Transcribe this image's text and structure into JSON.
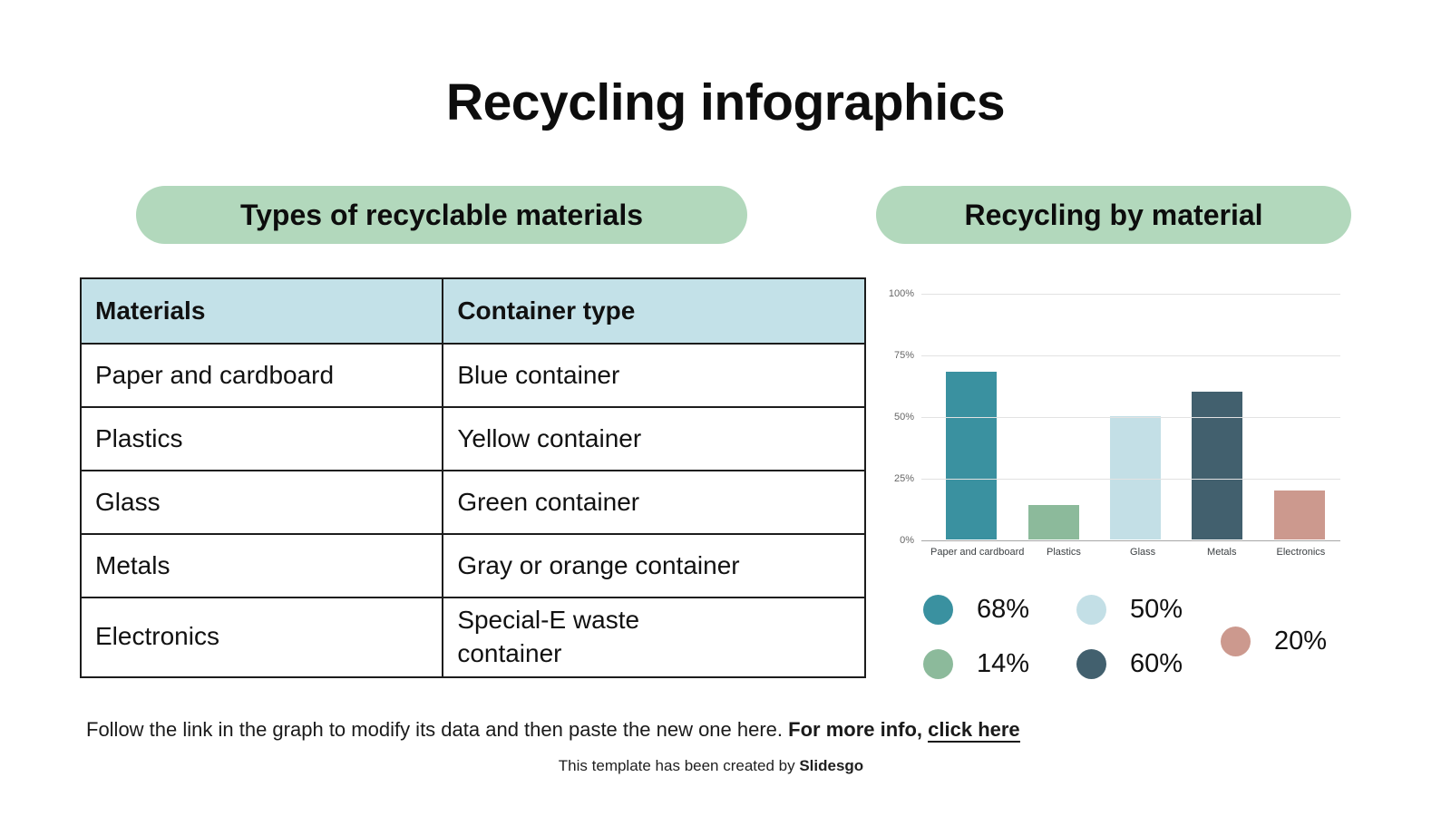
{
  "title": "Recycling infographics",
  "sections": {
    "materials": {
      "header": "Types of recyclable materials",
      "table": {
        "columns": [
          "Materials",
          "Container type"
        ],
        "rows": [
          [
            "Paper and cardboard",
            "Blue container"
          ],
          [
            "Plastics",
            "Yellow container"
          ],
          [
            "Glass",
            "Green container"
          ],
          [
            "Metals",
            "Gray or orange container"
          ],
          [
            "Electronics",
            "Special-E waste\ncontainer"
          ]
        ]
      }
    },
    "chart": {
      "header": "Recycling by material"
    }
  },
  "chart_data": {
    "type": "bar",
    "title": "Recycling by material",
    "categories": [
      "Paper and cardboard",
      "Plastics",
      "Glass",
      "Metals",
      "Electronics"
    ],
    "values": [
      68,
      14,
      50,
      60,
      20
    ],
    "bar_colors": [
      "#3a91a0",
      "#8cba9b",
      "#c3dfe6",
      "#42606e",
      "#cc998e"
    ],
    "xlabel": "",
    "ylabel": "",
    "ylim": [
      0,
      100
    ],
    "yticks": [
      0,
      25,
      50,
      75,
      100
    ],
    "ytick_labels": [
      "0%",
      "25%",
      "50%",
      "75%",
      "100%"
    ],
    "grid": true,
    "legend_position": "below chart",
    "legend": [
      {
        "label": "68%",
        "color": "#3a91a0"
      },
      {
        "label": "50%",
        "color": "#c3dfe6"
      },
      {
        "label": "14%",
        "color": "#8cba9b"
      },
      {
        "label": "60%",
        "color": "#42606e"
      },
      {
        "label": "20%",
        "color": "#cc998e"
      }
    ]
  },
  "footer": {
    "line1_normal": "Follow the link in the graph to modify its data and then paste the new one here. ",
    "line1_bold": "For more info, ",
    "line1_link": "click here",
    "credit_normal": "This template has been created by ",
    "credit_bold": "Slidesgo"
  },
  "colors": {
    "pill_background": "#b2d8bc",
    "table_header_background": "#c3e1e8",
    "gridline": "#e2e2e2",
    "axis_line": "#a6a6a6",
    "axis_label": "#666666"
  }
}
